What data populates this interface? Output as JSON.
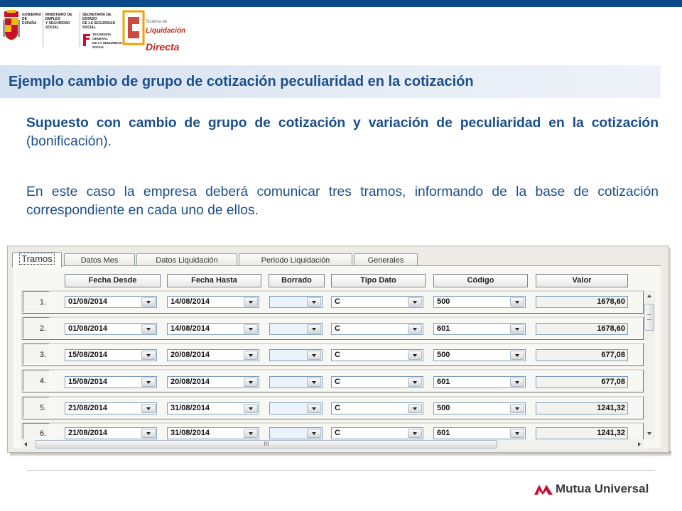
{
  "header": {
    "gov_line1": "Gobierno de España",
    "ministry_line1": "Ministerio de Empleo",
    "ministry_line2": "y Seguridad Social",
    "secretaria_line1": "Secretaría de Estado",
    "secretaria_line2": "de la Seguridad Social",
    "tesoreria_line1": "Tesorería General",
    "tesoreria_line2": "de la Seguridad Social",
    "sld_small": "Sistema de",
    "sld_name1": "Liquidación",
    "sld_name2": "Directa"
  },
  "title": "Ejemplo cambio de grupo de cotización peculiaridad en la cotización",
  "para1_bold": "Supuesto con cambio de grupo de cotización y variación de peculiaridad en la cotización",
  "para1_rest": " (bonificación).",
  "para2": "En este caso la empresa deberá comunicar tres tramos, informando de la base de cotización correspondiente en cada uno de ellos.",
  "tabs": [
    "Tramos",
    "Datos Mes",
    "Datos Liquidación",
    "Periodo Liquidación",
    "Generales"
  ],
  "columns": [
    "Fecha Desde",
    "Fecha Hasta",
    "Borrado",
    "Tipo Dato",
    "Código",
    "Valor"
  ],
  "rows": [
    {
      "num": "1.",
      "desde": "01/08/2014",
      "hasta": "14/08/2014",
      "borrado": "",
      "tipo": "C",
      "codigo": "500",
      "valor": "1678,60"
    },
    {
      "num": "2.",
      "desde": "01/08/2014",
      "hasta": "14/08/2014",
      "borrado": "",
      "tipo": "C",
      "codigo": "601",
      "valor": "1678,60"
    },
    {
      "num": "3.",
      "desde": "15/08/2014",
      "hasta": "20/08/2014",
      "borrado": "",
      "tipo": "C",
      "codigo": "500",
      "valor": "677,08"
    },
    {
      "num": "4.",
      "desde": "15/08/2014",
      "hasta": "20/08/2014",
      "borrado": "",
      "tipo": "C",
      "codigo": "601",
      "valor": "677,08"
    },
    {
      "num": "5.",
      "desde": "21/08/2014",
      "hasta": "31/08/2014",
      "borrado": "",
      "tipo": "C",
      "codigo": "500",
      "valor": "1241,32"
    },
    {
      "num": "6.",
      "desde": "21/08/2014",
      "hasta": "31/08/2014",
      "borrado": "",
      "tipo": "C",
      "codigo": "601",
      "valor": "1241,32"
    }
  ],
  "hscroll_grip": "III",
  "brand": "Mutua Universal",
  "colors": {
    "accent": "#1b4e8a",
    "topbar": "#0d4a8c",
    "brand_red": "#c8102e"
  }
}
